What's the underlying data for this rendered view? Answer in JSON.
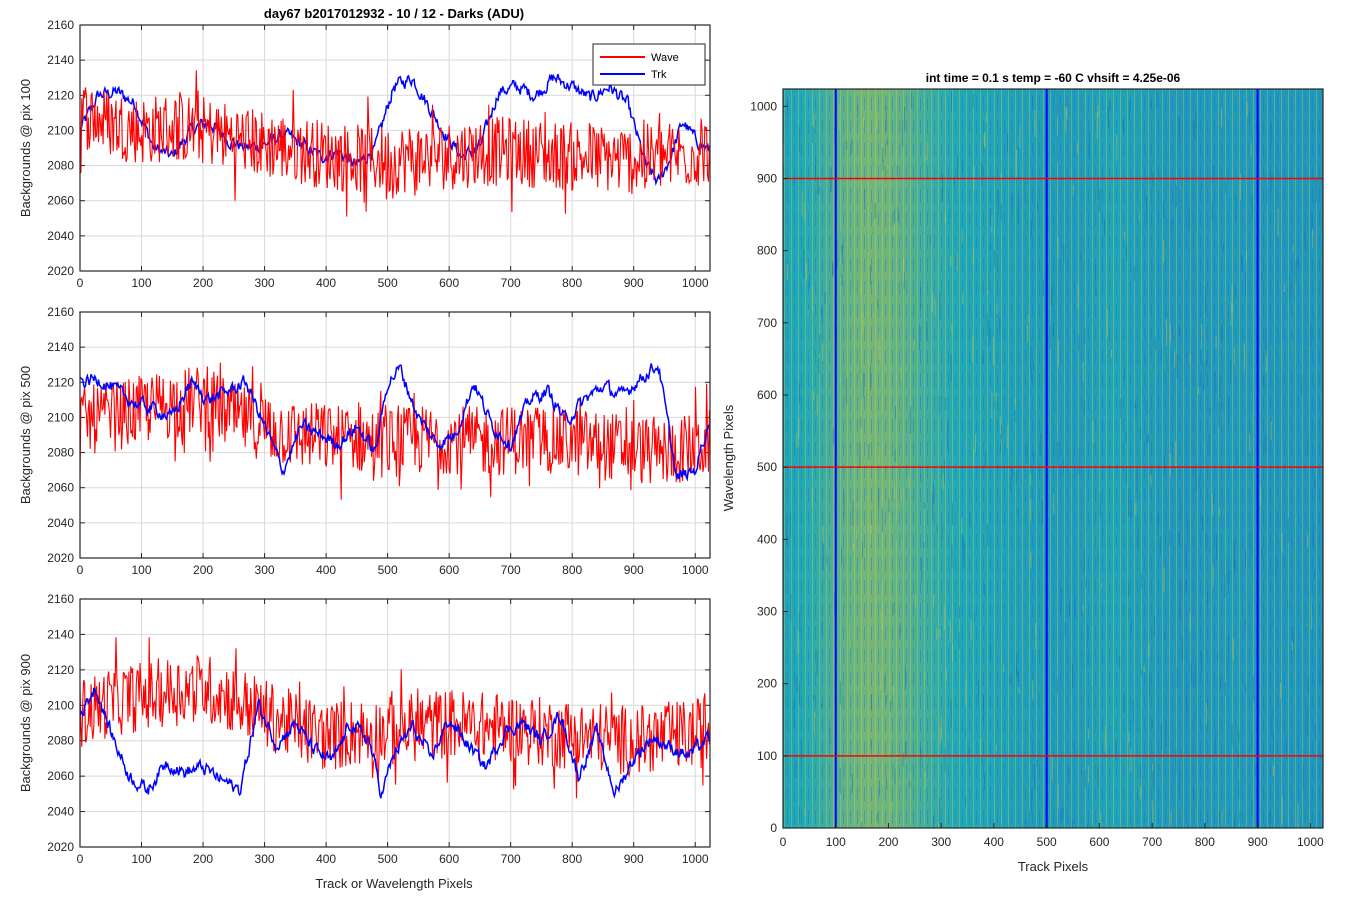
{
  "figure": {
    "left_title": "day67 b2017012932 - 10 / 12 - Darks (ADU)",
    "right_title": "int time = 0.1 s   temp = -60 C   vhsift = 4.25e-06",
    "left_xlabel": "Track or Wavelength Pixels",
    "right_xlabel": "Track Pixels",
    "right_ylabel": "Wavelength Pixels"
  },
  "colors": {
    "wave": "#ff0000",
    "trk": "#0000ff",
    "heat_low": "#1f77c6",
    "heat_mid": "#1fa9b8",
    "heat_high": "#c9c23a"
  },
  "chart_data": [
    {
      "type": "line",
      "ylabel": "Backgrounds @ pix 100",
      "xlim": [
        0,
        1024
      ],
      "ylim": [
        2020,
        2160
      ],
      "xticks": [
        0,
        100,
        200,
        300,
        400,
        500,
        600,
        700,
        800,
        900,
        1000
      ],
      "yticks": [
        2020,
        2040,
        2060,
        2080,
        2100,
        2120,
        2140,
        2160
      ],
      "grid": true,
      "legend": "top-right",
      "series": [
        {
          "name": "Wave",
          "color": "#ff0000",
          "x": [
            0,
            50,
            100,
            150,
            200,
            250,
            300,
            350,
            400,
            450,
            500,
            550,
            600,
            650,
            700,
            750,
            800,
            850,
            900,
            950,
            1024
          ],
          "values": [
            2110,
            2104,
            2100,
            2102,
            2100,
            2096,
            2092,
            2090,
            2086,
            2084,
            2083,
            2085,
            2086,
            2088,
            2088,
            2087,
            2085,
            2084,
            2083,
            2085,
            2088
          ]
        },
        {
          "name": "Trk",
          "color": "#0000ff",
          "x": [
            0,
            30,
            60,
            90,
            120,
            150,
            180,
            210,
            240,
            270,
            300,
            330,
            360,
            390,
            420,
            450,
            480,
            510,
            540,
            560,
            590,
            620,
            650,
            680,
            710,
            740,
            770,
            800,
            830,
            860,
            890,
            920,
            940,
            960,
            980,
            1000,
            1024
          ],
          "values": [
            2100,
            2120,
            2122,
            2115,
            2090,
            2085,
            2100,
            2105,
            2095,
            2090,
            2092,
            2098,
            2092,
            2085,
            2088,
            2080,
            2090,
            2125,
            2130,
            2118,
            2100,
            2085,
            2090,
            2122,
            2125,
            2120,
            2130,
            2125,
            2118,
            2125,
            2115,
            2080,
            2070,
            2085,
            2105,
            2095,
            2088
          ]
        }
      ]
    },
    {
      "type": "line",
      "ylabel": "Backgrounds @ pix 500",
      "xlim": [
        0,
        1024
      ],
      "ylim": [
        2020,
        2160
      ],
      "xticks": [
        0,
        100,
        200,
        300,
        400,
        500,
        600,
        700,
        800,
        900,
        1000
      ],
      "yticks": [
        2020,
        2040,
        2060,
        2080,
        2100,
        2120,
        2140,
        2160
      ],
      "grid": true,
      "series": [
        {
          "name": "Wave",
          "color": "#ff0000",
          "x": [
            0,
            50,
            100,
            150,
            200,
            250,
            300,
            350,
            400,
            450,
            500,
            550,
            600,
            650,
            700,
            750,
            800,
            850,
            900,
            950,
            1024
          ],
          "values": [
            2098,
            2100,
            2104,
            2108,
            2110,
            2100,
            2095,
            2090,
            2088,
            2088,
            2085,
            2087,
            2088,
            2086,
            2087,
            2088,
            2086,
            2084,
            2082,
            2080,
            2085
          ]
        },
        {
          "name": "Trk",
          "color": "#0000ff",
          "x": [
            0,
            30,
            60,
            90,
            120,
            150,
            180,
            210,
            240,
            270,
            300,
            330,
            360,
            390,
            420,
            450,
            480,
            500,
            520,
            550,
            580,
            610,
            640,
            670,
            700,
            730,
            760,
            790,
            820,
            850,
            880,
            910,
            940,
            970,
            1000,
            1024
          ],
          "values": [
            2120,
            2122,
            2115,
            2108,
            2105,
            2100,
            2120,
            2110,
            2115,
            2120,
            2095,
            2070,
            2095,
            2090,
            2085,
            2095,
            2080,
            2120,
            2128,
            2100,
            2085,
            2090,
            2120,
            2095,
            2085,
            2110,
            2115,
            2098,
            2110,
            2118,
            2112,
            2122,
            2130,
            2065,
            2070,
            2100
          ]
        }
      ]
    },
    {
      "type": "line",
      "ylabel": "Backgrounds @ pix 900",
      "xlim": [
        0,
        1024
      ],
      "ylim": [
        2020,
        2160
      ],
      "xticks": [
        0,
        100,
        200,
        300,
        400,
        500,
        600,
        700,
        800,
        900,
        1000
      ],
      "yticks": [
        2020,
        2040,
        2060,
        2080,
        2100,
        2120,
        2140,
        2160
      ],
      "grid": true,
      "series": [
        {
          "name": "Wave",
          "color": "#ff0000",
          "x": [
            0,
            50,
            100,
            150,
            200,
            250,
            300,
            350,
            400,
            450,
            500,
            550,
            600,
            650,
            700,
            750,
            800,
            850,
            900,
            950,
            1024
          ],
          "values": [
            2095,
            2102,
            2105,
            2108,
            2110,
            2104,
            2095,
            2088,
            2082,
            2085,
            2085,
            2088,
            2090,
            2088,
            2087,
            2085,
            2083,
            2082,
            2080,
            2082,
            2085
          ]
        },
        {
          "name": "Trk",
          "color": "#0000ff",
          "x": [
            0,
            25,
            50,
            80,
            110,
            140,
            170,
            200,
            230,
            260,
            290,
            320,
            350,
            380,
            410,
            440,
            470,
            490,
            510,
            540,
            570,
            600,
            630,
            660,
            690,
            720,
            750,
            780,
            810,
            840,
            870,
            900,
            930,
            960,
            990,
            1024
          ],
          "values": [
            2095,
            2110,
            2085,
            2060,
            2052,
            2068,
            2062,
            2065,
            2058,
            2052,
            2100,
            2078,
            2090,
            2075,
            2068,
            2090,
            2080,
            2050,
            2072,
            2088,
            2070,
            2092,
            2078,
            2065,
            2085,
            2090,
            2080,
            2095,
            2060,
            2085,
            2050,
            2070,
            2082,
            2076,
            2072,
            2082
          ]
        }
      ]
    },
    {
      "type": "heatmap",
      "title": "int time = 0.1 s   temp = -60 C   vhsift = 4.25e-06",
      "xlabel": "Track Pixels",
      "ylabel": "Wavelength Pixels",
      "xlim": [
        0,
        1024
      ],
      "ylim": [
        0,
        1024
      ],
      "xticks": [
        0,
        100,
        200,
        300,
        400,
        500,
        600,
        700,
        800,
        900,
        1000
      ],
      "yticks": [
        0,
        100,
        200,
        300,
        400,
        500,
        600,
        700,
        800,
        900,
        1000
      ],
      "column_profile": [
        0.45,
        0.5,
        0.55,
        0.65,
        0.72,
        0.75,
        0.73,
        0.68,
        0.6,
        0.55,
        0.5,
        0.48,
        0.45,
        0.42,
        0.4,
        0.38,
        0.36,
        0.38,
        0.42,
        0.45,
        0.42,
        0.38,
        0.35,
        0.32,
        0.33,
        0.35,
        0.36,
        0.34,
        0.32,
        0.33,
        0.32,
        0.3
      ],
      "vertical_markers": [
        100,
        500,
        900
      ],
      "horizontal_markers": [
        100,
        500,
        900
      ],
      "vertical_marker_color": "#0000ff",
      "horizontal_marker_color": "#ff0000"
    }
  ]
}
